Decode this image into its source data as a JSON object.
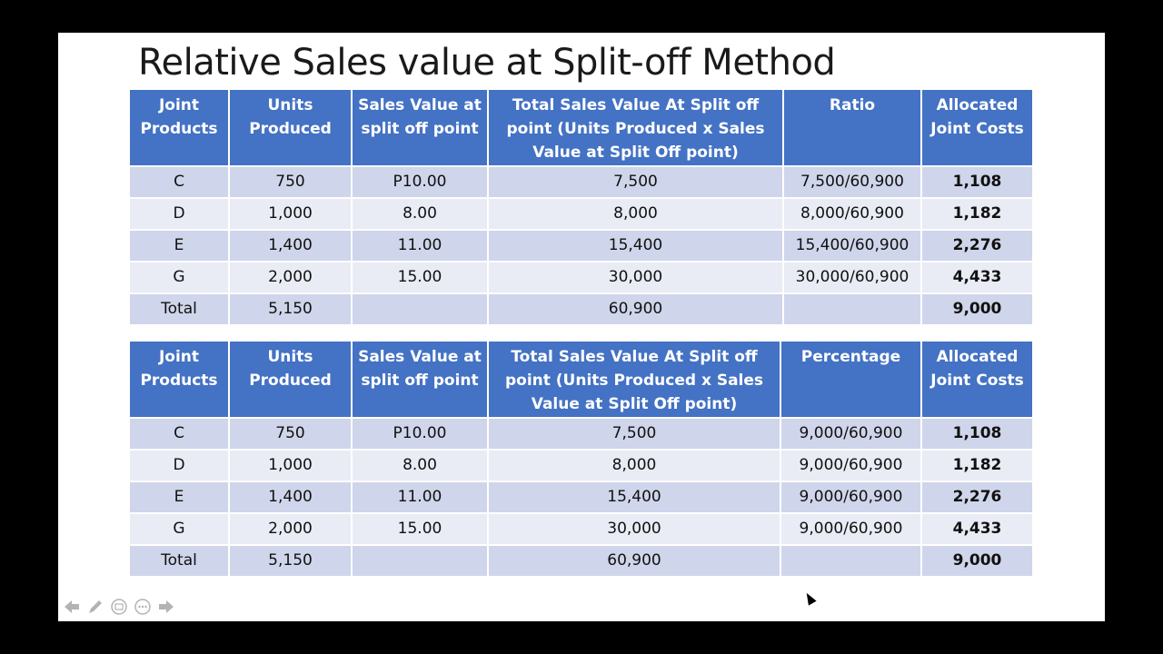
{
  "title": "Relative Sales value at Split-off Method",
  "table1": {
    "headers": [
      "Joint Products",
      "Units Produced",
      "Sales Value at split off point",
      "Total Sales Value At Split off point (Units Produced x Sales Value at Split Off point)",
      "Ratio",
      "Allocated Joint Costs"
    ],
    "rows": [
      [
        "C",
        "750",
        "P10.00",
        "7,500",
        "7,500/60,900",
        "1,108"
      ],
      [
        "D",
        "1,000",
        "8.00",
        "8,000",
        "8,000/60,900",
        "1,182"
      ],
      [
        "E",
        "1,400",
        "11.00",
        "15,400",
        "15,400/60,900",
        "2,276"
      ],
      [
        "G",
        "2,000",
        "15.00",
        "30,000",
        "30,000/60,900",
        "4,433"
      ],
      [
        "Total",
        "5,150",
        "",
        "60,900",
        "",
        "9,000"
      ]
    ]
  },
  "table2": {
    "headers": [
      "Joint Products",
      "Units Produced",
      "Sales Value at split off point",
      "Total Sales Value At Split off point (Units Produced x Sales Value at Split Off point)",
      "Percentage",
      "Allocated Joint Costs"
    ],
    "rows": [
      [
        "C",
        "750",
        "P10.00",
        "7,500",
        "9,000/60,900",
        "1,108"
      ],
      [
        "D",
        "1,000",
        "8.00",
        "8,000",
        "9,000/60,900",
        "1,182"
      ],
      [
        "E",
        "1,400",
        "11.00",
        "15,400",
        "9,000/60,900",
        "2,276"
      ],
      [
        "G",
        "2,000",
        "15.00",
        "30,000",
        "9,000/60,900",
        "4,433"
      ],
      [
        "Total",
        "5,150",
        "",
        "60,900",
        "",
        "9,000"
      ]
    ]
  },
  "nav": {
    "icons": [
      "arrow-left-icon",
      "pen-icon",
      "slides-icon",
      "more-icon",
      "arrow-right-icon"
    ]
  },
  "colors": {
    "header_bg": "#4472c4",
    "row_odd": "#cfd5ea",
    "row_even": "#e9ebf5"
  }
}
